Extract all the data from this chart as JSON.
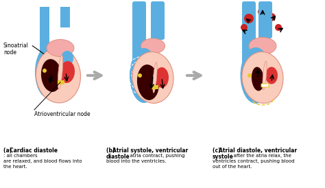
{
  "background_color": "#ffffff",
  "colors": {
    "light_blue": "#5AAFE0",
    "blue": "#4A9FD0",
    "dark_blue": "#3A8FC0",
    "pink": "#F5AAAA",
    "light_pink": "#FACCBB",
    "peach": "#F0C0A0",
    "red": "#DD3333",
    "dark_red": "#CC2222",
    "dark_maroon": "#3A0000",
    "medium_maroon": "#550000",
    "gold": "#E8C830",
    "white": "#ffffff",
    "black": "#000000",
    "outline_pink": "#E09080",
    "gray_arrow": "#AAAAAA",
    "light_gray": "#DDDDDD"
  },
  "captions": {
    "a_bold": "(a) Cardiac diastole",
    "a_text": ": all chambers\nare relaxed, and blood flows into\nthe heart.",
    "b_bold": "(b) Atrial systole, ventricular\ndiastole",
    "b_text": ": atria contract, pushing\nblood into the ventricles.",
    "c_bold": "(c) Atrial diastole, ventricular\nsystole",
    "c_text": ": after the atria relax, the\nventricles contract, pushing blood\nout of the heart."
  },
  "label_sinoatrial": "Sinoatrial\nnode",
  "label_av": "Atrioventricular node"
}
